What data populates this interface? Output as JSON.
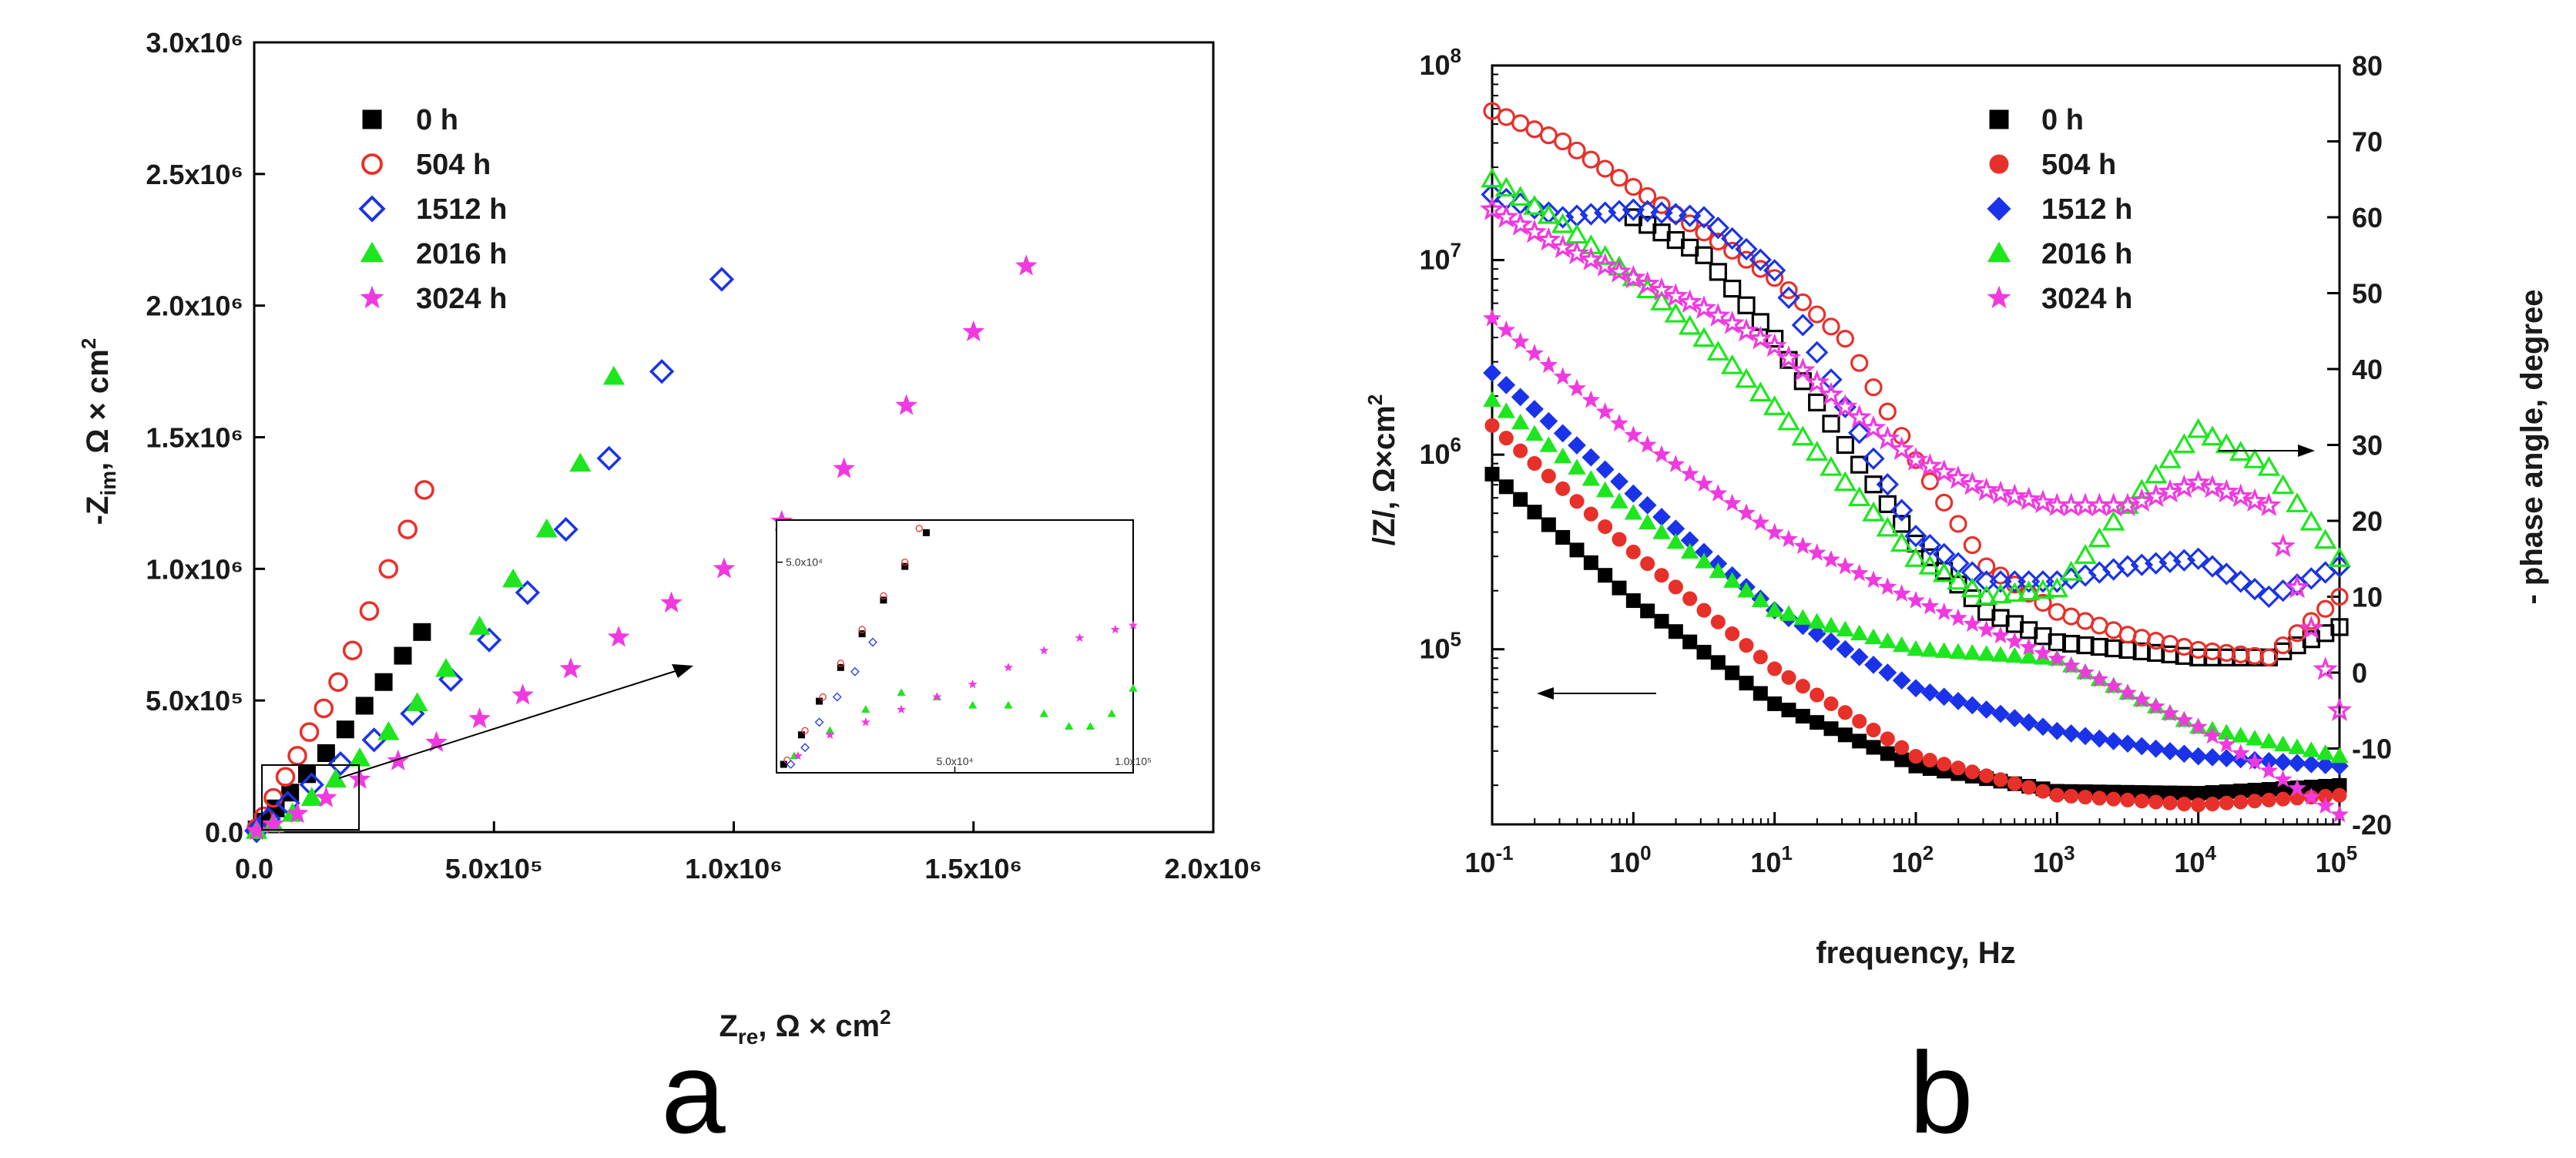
{
  "panels": [
    {
      "letter": "a"
    },
    {
      "letter": "b"
    }
  ],
  "colors": {
    "0h": "#000000",
    "504h": "#e8302a",
    "1512h": "#1a33e8",
    "2016h": "#1ee61e",
    "3024h": "#f03ae0"
  },
  "chart_data": [
    {
      "id": "nyquist",
      "type": "scatter",
      "title": "",
      "xlabel": "Zᵣₑ, Ω × cm²",
      "xlabel_main": "Z",
      "xlabel_sub": "re",
      "xlabel_rest": ", Ω × cm",
      "ylabel_main": "-Z",
      "ylabel_sub": "im",
      "ylabel_rest": ", Ω × cm",
      "unit_sup": "2",
      "xlim": [
        0,
        2000000
      ],
      "ylim": [
        0,
        3000000
      ],
      "x_ticks": [
        {
          "value": 0,
          "label": "0.0"
        },
        {
          "value": 500000,
          "label": "5.0x10⁵"
        },
        {
          "value": 1000000,
          "label": "1.0x10⁶"
        },
        {
          "value": 1500000,
          "label": "1.5x10⁶"
        },
        {
          "value": 2000000,
          "label": "2.0x10⁶"
        }
      ],
      "y_ticks": [
        {
          "value": 0,
          "label": "0.0"
        },
        {
          "value": 500000,
          "label": "5.0x10⁵"
        },
        {
          "value": 1000000,
          "label": "1.0x10⁶"
        },
        {
          "value": 1500000,
          "label": "1.5x10⁶"
        },
        {
          "value": 2000000,
          "label": "2.0x10⁶"
        },
        {
          "value": 2500000,
          "label": "2.5x10⁶"
        },
        {
          "value": 3000000,
          "label": "3.0x10⁶"
        }
      ],
      "legend_position": "top-left",
      "series": [
        {
          "name": "0 h",
          "key": "0h",
          "marker": "square-filled",
          "x": [
            5000,
            20000,
            45000,
            75000,
            110000,
            150000,
            190000,
            230000,
            270000,
            310000,
            350000
          ],
          "y": [
            10000,
            40000,
            90000,
            150000,
            220000,
            300000,
            390000,
            480000,
            570000,
            670000,
            760000
          ]
        },
        {
          "name": "504 h",
          "key": "504h",
          "marker": "circle-open",
          "x": [
            5000,
            20000,
            40000,
            65000,
            90000,
            115000,
            145000,
            175000,
            205000,
            240000,
            280000,
            320000,
            355000
          ],
          "y": [
            15000,
            60000,
            130000,
            210000,
            290000,
            380000,
            470000,
            570000,
            690000,
            840000,
            1000000,
            1150000,
            1300000
          ]
        },
        {
          "name": "1512 h",
          "key": "1512h",
          "marker": "diamond-open",
          "x": [
            5000,
            30000,
            70000,
            120000,
            180000,
            250000,
            330000,
            410000,
            490000,
            570000,
            650000,
            740000,
            850000,
            975000
          ],
          "y": [
            5000,
            50000,
            110000,
            180000,
            260000,
            350000,
            450000,
            580000,
            730000,
            910000,
            1150000,
            1420000,
            1750000,
            2100000
          ]
        },
        {
          "name": "2016 h",
          "key": "2016h",
          "marker": "triangle-filled",
          "x": [
            5000,
            40000,
            80000,
            120000,
            170000,
            220000,
            280000,
            340000,
            400000,
            470000,
            540000,
            610000,
            680000,
            750000
          ],
          "y": [
            5000,
            30000,
            70000,
            130000,
            200000,
            280000,
            380000,
            490000,
            620000,
            780000,
            960000,
            1150000,
            1400000,
            1730000
          ]
        },
        {
          "name": "3024 h",
          "key": "3024h",
          "marker": "star-filled",
          "x": [
            5000,
            40000,
            90000,
            150000,
            220000,
            300000,
            380000,
            470000,
            560000,
            660000,
            760000,
            870000,
            980000,
            1100000,
            1230000,
            1360000,
            1500000,
            1610000
          ],
          "y": [
            5000,
            30000,
            70000,
            130000,
            200000,
            270000,
            340000,
            430000,
            520000,
            620000,
            740000,
            870000,
            1000000,
            1180000,
            1380000,
            1620000,
            1900000,
            2150000
          ]
        }
      ],
      "inset": {
        "xlim": [
          0,
          100000
        ],
        "ylim": [
          0,
          60000
        ],
        "x_ticks": [
          {
            "value": 50000,
            "label": "5.0x10⁴"
          },
          {
            "value": 100000,
            "label": "1.0x10⁵"
          }
        ],
        "y_ticks": [
          {
            "value": 50000,
            "label": "5.0x10⁴"
          }
        ],
        "series": [
          {
            "key": "0h",
            "x": [
              2000,
              7000,
              12000,
              18000,
              24000,
              30000,
              36000,
              42000
            ],
            "y": [
              2000,
              9000,
              17000,
              25000,
              33000,
              41000,
              49000,
              57000
            ]
          },
          {
            "key": "504h",
            "x": [
              3000,
              8000,
              13000,
              18000,
              24000,
              30000,
              36000,
              40000
            ],
            "y": [
              3000,
              10000,
              18000,
              26000,
              34000,
              42000,
              50000,
              58000
            ]
          },
          {
            "key": "1512h",
            "x": [
              4000,
              8000,
              12000,
              17000,
              22000,
              27000
            ],
            "y": [
              2000,
              6000,
              12000,
              18000,
              24000,
              31000
            ]
          },
          {
            "key": "2016h",
            "x": [
              5000,
              15000,
              25000,
              35000,
              45000,
              55000,
              65000,
              75000,
              82000,
              88000,
              94000,
              100000
            ],
            "y": [
              4000,
              10000,
              15000,
              19000,
              18000,
              16000,
              16000,
              14000,
              11000,
              11000,
              14000,
              20000
            ]
          },
          {
            "key": "3024h",
            "x": [
              6000,
              15000,
              25000,
              35000,
              45000,
              55000,
              65000,
              75000,
              85000,
              95000,
              100000
            ],
            "y": [
              4000,
              9000,
              12000,
              15000,
              18000,
              21000,
              25000,
              29000,
              32000,
              34000,
              35000
            ]
          }
        ]
      }
    },
    {
      "id": "bode",
      "type": "scatter",
      "title": "",
      "xlabel": "frequency, Hz",
      "ylabel_left_main": "/Z/, Ω×cm",
      "ylabel_left_sup": "2",
      "ylabel_right": "- phase angle, degree",
      "x_log_range": [
        -1,
        5
      ],
      "y_left_log_range": [
        4.1,
        8
      ],
      "y_right_lim": [
        -20,
        80
      ],
      "x_ticks": [
        {
          "exp": -1,
          "label": "10",
          "sup": "-1"
        },
        {
          "exp": 0,
          "label": "10",
          "sup": "0"
        },
        {
          "exp": 1,
          "label": "10",
          "sup": "1"
        },
        {
          "exp": 2,
          "label": "10",
          "sup": "2"
        },
        {
          "exp": 3,
          "label": "10",
          "sup": "3"
        },
        {
          "exp": 4,
          "label": "10",
          "sup": "4"
        },
        {
          "exp": 5,
          "label": "10",
          "sup": "5"
        }
      ],
      "y_left_ticks": [
        {
          "exp": 5,
          "label": "10",
          "sup": "5"
        },
        {
          "exp": 6,
          "label": "10",
          "sup": "6"
        },
        {
          "exp": 7,
          "label": "10",
          "sup": "7"
        },
        {
          "exp": 8,
          "label": "10",
          "sup": "8"
        }
      ],
      "y_right_ticks": [
        {
          "value": -20,
          "label": "-20"
        },
        {
          "value": -10,
          "label": "-10"
        },
        {
          "value": 0,
          "label": "0"
        },
        {
          "value": 10,
          "label": "10"
        },
        {
          "value": 20,
          "label": "20"
        },
        {
          "value": 30,
          "label": "30"
        },
        {
          "value": 40,
          "label": "40"
        },
        {
          "value": 50,
          "label": "50"
        },
        {
          "value": 60,
          "label": "60"
        },
        {
          "value": 70,
          "label": "70"
        },
        {
          "value": 80,
          "label": "80"
        }
      ],
      "legend_position": "top-right",
      "legend": [
        {
          "name": "0 h",
          "key": "0h",
          "marker": "square-filled"
        },
        {
          "name": "504 h",
          "key": "504h",
          "marker": "circle-filled"
        },
        {
          "name": "1512 h",
          "key": "1512h",
          "marker": "diamond-filled"
        },
        {
          "name": "2016 h",
          "key": "2016h",
          "marker": "triangle-filled"
        },
        {
          "name": "3024 h",
          "key": "3024h",
          "marker": "star-filled"
        }
      ],
      "impedance_series": [
        {
          "key": "0h",
          "marker": "square-filled",
          "logf": [
            -1,
            0,
            1,
            2,
            3,
            4,
            5
          ],
          "logz": [
            5.9,
            5.25,
            4.72,
            4.4,
            4.27,
            4.26,
            4.3
          ]
        },
        {
          "key": "504h",
          "marker": "circle-filled",
          "logf": [
            -1,
            0,
            1,
            2,
            3,
            4,
            5
          ],
          "logz": [
            6.15,
            5.5,
            4.9,
            4.45,
            4.25,
            4.2,
            4.25
          ]
        },
        {
          "key": "1512h",
          "marker": "diamond-filled",
          "logf": [
            -1,
            0,
            1,
            2,
            3,
            4,
            5
          ],
          "logz": [
            6.42,
            5.8,
            5.2,
            4.8,
            4.58,
            4.45,
            4.4
          ]
        },
        {
          "key": "2016h",
          "marker": "triangle-filled",
          "logf": [
            -1,
            0,
            1,
            2,
            3,
            4,
            5
          ],
          "logz": [
            6.28,
            5.7,
            5.2,
            5.0,
            4.95,
            4.6,
            4.45
          ]
        },
        {
          "key": "3024h",
          "marker": "star-filled",
          "logf": [
            -1,
            0,
            1,
            2,
            3,
            4,
            5
          ],
          "logz": [
            6.7,
            6.1,
            5.6,
            5.25,
            4.95,
            4.6,
            4.15
          ]
        }
      ],
      "phase_series": [
        {
          "key": "0h",
          "marker": "square-open",
          "logf": [
            0,
            0.5,
            1,
            1.5,
            2,
            2.5,
            3,
            3.5,
            4,
            4.5,
            5
          ],
          "deg": [
            60,
            55,
            44,
            30,
            17,
            8,
            4,
            3,
            2,
            2,
            6
          ]
        },
        {
          "key": "504h",
          "marker": "circle-open",
          "logf": [
            -1,
            -0.5,
            0,
            0.5,
            1,
            1.5,
            2,
            2.5,
            3,
            3.5,
            4,
            4.5,
            5
          ],
          "deg": [
            74,
            70,
            64,
            58,
            52,
            44,
            28,
            14,
            8,
            5,
            3,
            2,
            10
          ]
        },
        {
          "key": "1512h",
          "marker": "diamond-open",
          "logf": [
            -1,
            -0.5,
            0,
            0.5,
            1,
            1.5,
            2,
            2.5,
            3,
            3.5,
            4,
            4.5,
            5
          ],
          "deg": [
            63,
            60,
            61,
            60,
            53,
            35,
            18,
            12,
            12,
            14,
            15,
            10,
            14
          ]
        },
        {
          "key": "2016h",
          "marker": "triangle-open",
          "logf": [
            -1,
            -0.5,
            0,
            0.5,
            1,
            1.5,
            2,
            2.5,
            3,
            3.5,
            4,
            4.5,
            5
          ],
          "deg": [
            65,
            59,
            52,
            44,
            35,
            25,
            15,
            10,
            11,
            22,
            32,
            27,
            15
          ]
        },
        {
          "key": "3024h",
          "marker": "star-open",
          "logf": [
            -1,
            -0.5,
            0,
            0.5,
            1,
            1.5,
            2,
            2.5,
            3,
            3.5,
            4,
            4.5,
            5
          ],
          "deg": [
            61,
            56,
            52,
            48,
            43,
            35,
            28,
            24,
            22,
            22,
            25,
            22,
            -5
          ]
        }
      ]
    }
  ]
}
